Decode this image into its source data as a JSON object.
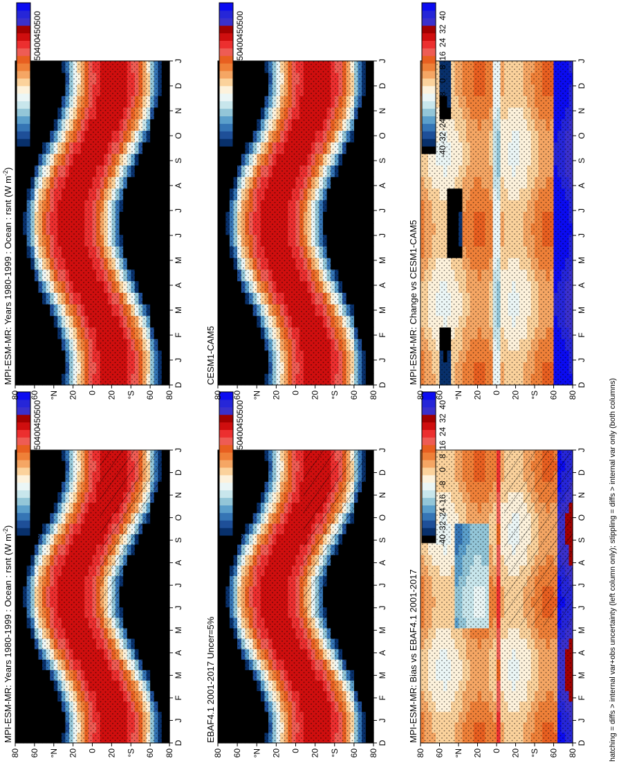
{
  "footnote": "hatching = diffs > internal var+obs uncertainty (left column only); stippling = diffs > internal var only (both columns)",
  "month_labels": [
    "D",
    "J",
    "F",
    "M",
    "A",
    "M",
    "J",
    "J",
    "A",
    "S",
    "O",
    "N",
    "D",
    "J"
  ],
  "lat_labels": [
    "80",
    "60",
    "°N",
    "20",
    "0",
    "20",
    "°S",
    "60",
    "80"
  ],
  "colors": {
    "abs_scale": [
      "#000000",
      "#08306b",
      "#1e4f98",
      "#3575b5",
      "#5b9fcb",
      "#93c6d8",
      "#c8e6ec",
      "#ebf6f6",
      "#fdf2dc",
      "#fbd29c",
      "#f5a664",
      "#ef8038",
      "#e85f20",
      "#ee5c54",
      "#ec2f2f",
      "#cf0e0e",
      "#a20000",
      "#3a30cc",
      "#2626d8",
      "#0b0bf0"
    ],
    "diff_scale": [
      "#000000",
      "#08306b",
      "#1e4f98",
      "#3575b5",
      "#5b9fcb",
      "#93c6d8",
      "#c8e6ec",
      "#ebf6f6",
      "#fdf2dc",
      "#fbd29c",
      "#f5a664",
      "#ef8038",
      "#e85f20",
      "#ee5c54",
      "#ec2f2f",
      "#cf0e0e",
      "#a20000",
      "#3a30cc",
      "#2626d8",
      "#0b0bf0"
    ]
  },
  "chart_data": [
    {
      "type": "heatmap",
      "panel": "left-top",
      "title": "MPI-ESM-MR: Years 1980-1999 : Ocean : rsnt (W m",
      "title_sup": "-2",
      "title_end": ")",
      "x_axis": "month (D through J)",
      "y_axis": "latitude 80°N to 80°S",
      "colorbar_ticks": [
        "500",
        "450",
        "400",
        "350",
        "300",
        "250",
        "200",
        "150",
        "100",
        "50",
        "0"
      ],
      "overlay": "hatching and stippling",
      "description_values": {
        "max_summer_pole": 350,
        "min_winter_pole": 0
      }
    },
    {
      "type": "heatmap",
      "panel": "left-middle",
      "title": "EBAF4.1 2001-2017 Uncer=5%",
      "colorbar_ticks": [
        "500",
        "450",
        "400",
        "350",
        "300",
        "250",
        "200",
        "150",
        "100",
        "50",
        "0"
      ],
      "overlay": "hatching and stippling"
    },
    {
      "type": "heatmap",
      "panel": "left-bottom",
      "title": "MPI-ESM-MR: Bias vs EBAF4.1 2001-2017",
      "colorbar_ticks": [
        "40",
        "32",
        "24",
        "16",
        "8",
        "0",
        "-8",
        "-16",
        "-24",
        "-32",
        "-40"
      ],
      "overlay": "hatching and stippling"
    },
    {
      "type": "heatmap",
      "panel": "right-top",
      "title": "MPI-ESM-MR: Years 1980-1999 : Ocean : rsnt (W m",
      "title_sup": "-2",
      "title_end": ")",
      "colorbar_ticks": [
        "500",
        "450",
        "400",
        "350",
        "300",
        "250",
        "200",
        "150",
        "100",
        "50",
        "0"
      ],
      "overlay": "stippling"
    },
    {
      "type": "heatmap",
      "panel": "right-middle",
      "title": "CESM1-CAM5",
      "colorbar_ticks": [
        "500",
        "450",
        "400",
        "350",
        "300",
        "250",
        "200",
        "150",
        "100",
        "50",
        "0"
      ],
      "overlay": "stippling"
    },
    {
      "type": "heatmap",
      "panel": "right-bottom",
      "title": "MPI-ESM-MR: Change vs CESM1-CAM5",
      "colorbar_ticks": [
        "40",
        "32",
        "24",
        "16",
        "8",
        "0",
        "-8",
        "-16",
        "-24",
        "-32",
        "-40"
      ],
      "overlay": "stippling"
    }
  ]
}
